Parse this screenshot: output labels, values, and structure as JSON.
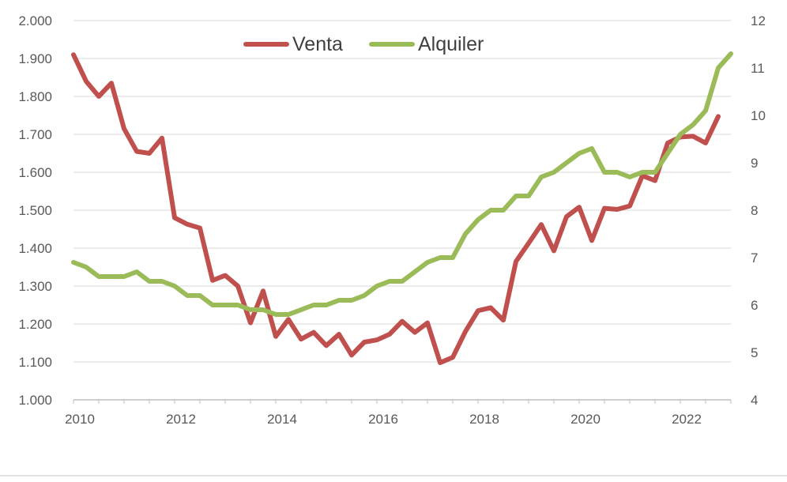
{
  "chart_data": {
    "type": "line",
    "title": "",
    "xlabel": "",
    "ylabel": "",
    "x_ticks": [
      "2010",
      "2012",
      "2014",
      "2016",
      "2018",
      "2020",
      "2022"
    ],
    "xlim": [
      2010,
      2023
    ],
    "ylim_left": [
      1000,
      2000
    ],
    "ylim_right": [
      4,
      12
    ],
    "y_ticks_left": [
      "1.000",
      "1.100",
      "1.200",
      "1.300",
      "1.400",
      "1.500",
      "1.600",
      "1.700",
      "1.800",
      "1.900",
      "2.000"
    ],
    "y_ticks_right": [
      "4",
      "5",
      "6",
      "7",
      "8",
      "9",
      "10",
      "11",
      "12"
    ],
    "grid": true,
    "legend_position": "top-center",
    "series": [
      {
        "name": "Venta",
        "axis": "left",
        "color": "#c0504d",
        "points": [
          [
            2010.0,
            1910
          ],
          [
            2010.25,
            1840
          ],
          [
            2010.5,
            1800
          ],
          [
            2010.75,
            1835
          ],
          [
            2011.0,
            1715
          ],
          [
            2011.25,
            1655
          ],
          [
            2011.5,
            1650
          ],
          [
            2011.75,
            1690
          ],
          [
            2012.0,
            1480
          ],
          [
            2012.25,
            1463
          ],
          [
            2012.5,
            1453
          ],
          [
            2012.75,
            1315
          ],
          [
            2013.0,
            1328
          ],
          [
            2013.25,
            1300
          ],
          [
            2013.5,
            1203
          ],
          [
            2013.75,
            1287
          ],
          [
            2014.0,
            1167
          ],
          [
            2014.25,
            1212
          ],
          [
            2014.5,
            1160
          ],
          [
            2014.75,
            1178
          ],
          [
            2015.0,
            1143
          ],
          [
            2015.25,
            1173
          ],
          [
            2015.5,
            1118
          ],
          [
            2015.75,
            1152
          ],
          [
            2016.0,
            1158
          ],
          [
            2016.25,
            1173
          ],
          [
            2016.5,
            1207
          ],
          [
            2016.75,
            1178
          ],
          [
            2017.0,
            1203
          ],
          [
            2017.25,
            1098
          ],
          [
            2017.5,
            1112
          ],
          [
            2017.75,
            1180
          ],
          [
            2018.0,
            1235
          ],
          [
            2018.25,
            1243
          ],
          [
            2018.5,
            1210
          ],
          [
            2018.75,
            1365
          ],
          [
            2019.0,
            1413
          ],
          [
            2019.25,
            1462
          ],
          [
            2019.5,
            1393
          ],
          [
            2019.75,
            1483
          ],
          [
            2020.0,
            1508
          ],
          [
            2020.25,
            1420
          ],
          [
            2020.5,
            1505
          ],
          [
            2020.75,
            1502
          ],
          [
            2021.0,
            1511
          ],
          [
            2021.25,
            1591
          ],
          [
            2021.5,
            1578
          ],
          [
            2021.75,
            1677
          ],
          [
            2022.0,
            1693
          ],
          [
            2022.25,
            1695
          ],
          [
            2022.5,
            1677
          ],
          [
            2022.75,
            1747
          ]
        ]
      },
      {
        "name": "Alquiler",
        "axis": "right",
        "color": "#9bbb59",
        "points": [
          [
            2010.0,
            6.9
          ],
          [
            2010.25,
            6.8
          ],
          [
            2010.5,
            6.6
          ],
          [
            2010.75,
            6.6
          ],
          [
            2011.0,
            6.6
          ],
          [
            2011.25,
            6.7
          ],
          [
            2011.5,
            6.5
          ],
          [
            2011.75,
            6.5
          ],
          [
            2012.0,
            6.4
          ],
          [
            2012.25,
            6.2
          ],
          [
            2012.5,
            6.2
          ],
          [
            2012.75,
            6.0
          ],
          [
            2013.0,
            6.0
          ],
          [
            2013.25,
            6.0
          ],
          [
            2013.5,
            5.9
          ],
          [
            2013.75,
            5.9
          ],
          [
            2014.0,
            5.8
          ],
          [
            2014.25,
            5.8
          ],
          [
            2014.5,
            5.9
          ],
          [
            2014.75,
            6.0
          ],
          [
            2015.0,
            6.0
          ],
          [
            2015.25,
            6.1
          ],
          [
            2015.5,
            6.1
          ],
          [
            2015.75,
            6.2
          ],
          [
            2016.0,
            6.4
          ],
          [
            2016.25,
            6.5
          ],
          [
            2016.5,
            6.5
          ],
          [
            2016.75,
            6.7
          ],
          [
            2017.0,
            6.9
          ],
          [
            2017.25,
            7.0
          ],
          [
            2017.5,
            7.0
          ],
          [
            2017.75,
            7.5
          ],
          [
            2018.0,
            7.8
          ],
          [
            2018.25,
            8.0
          ],
          [
            2018.5,
            8.0
          ],
          [
            2018.75,
            8.3
          ],
          [
            2019.0,
            8.3
          ],
          [
            2019.25,
            8.7
          ],
          [
            2019.5,
            8.8
          ],
          [
            2019.75,
            9.0
          ],
          [
            2020.0,
            9.2
          ],
          [
            2020.25,
            9.3
          ],
          [
            2020.5,
            8.8
          ],
          [
            2020.75,
            8.8
          ],
          [
            2021.0,
            8.7
          ],
          [
            2021.25,
            8.8
          ],
          [
            2021.5,
            8.8
          ],
          [
            2021.75,
            9.2
          ],
          [
            2022.0,
            9.6
          ],
          [
            2022.25,
            9.8
          ],
          [
            2022.5,
            10.1
          ],
          [
            2022.75,
            11.0
          ],
          [
            2023.0,
            11.3
          ]
        ]
      }
    ]
  }
}
